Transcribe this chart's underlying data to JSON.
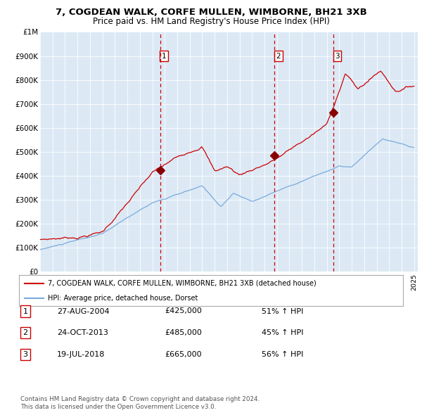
{
  "title": "7, COGDEAN WALK, CORFE MULLEN, WIMBORNE, BH21 3XB",
  "subtitle": "Price paid vs. HM Land Registry's House Price Index (HPI)",
  "background_color": "#ffffff",
  "plot_bg_color": "#dce9f5",
  "grid_color": "#c8d8e8",
  "red_line_color": "#cc0000",
  "blue_line_color": "#7aaadd",
  "marker_color": "#880000",
  "vline_color": "#cc0000",
  "ylim": [
    0,
    1000000
  ],
  "yticks": [
    0,
    100000,
    200000,
    300000,
    400000,
    500000,
    600000,
    700000,
    800000,
    900000,
    1000000
  ],
  "ytick_labels": [
    "£0",
    "£100K",
    "£200K",
    "£300K",
    "£400K",
    "£500K",
    "£600K",
    "£700K",
    "£800K",
    "£900K",
    "£1M"
  ],
  "year_start": 1995,
  "year_end": 2025,
  "sale_dates": [
    2004.65,
    2013.81,
    2018.54
  ],
  "sale_prices": [
    425000,
    485000,
    665000
  ],
  "sale_labels": [
    "1",
    "2",
    "3"
  ],
  "legend_line1": "7, COGDEAN WALK, CORFE MULLEN, WIMBORNE, BH21 3XB (detached house)",
  "legend_line2": "HPI: Average price, detached house, Dorset",
  "table_rows": [
    [
      "1",
      "27-AUG-2004",
      "£425,000",
      "51% ↑ HPI"
    ],
    [
      "2",
      "24-OCT-2013",
      "£485,000",
      "45% ↑ HPI"
    ],
    [
      "3",
      "19-JUL-2018",
      "£665,000",
      "56% ↑ HPI"
    ]
  ],
  "footer": "Contains HM Land Registry data © Crown copyright and database right 2024.\nThis data is licensed under the Open Government Licence v3.0."
}
